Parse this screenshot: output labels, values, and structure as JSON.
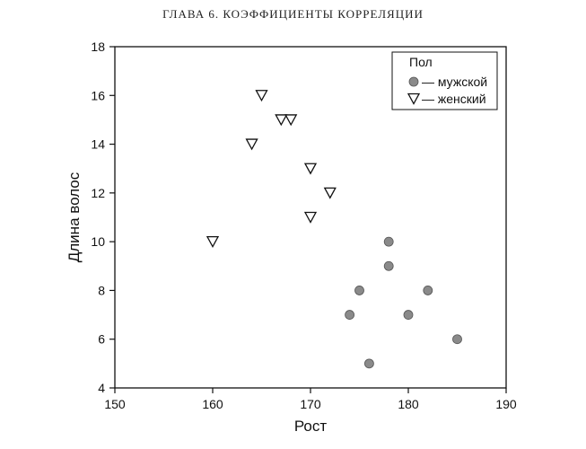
{
  "page": {
    "running_header": "ГЛАВА 6. КОЭФФИЦИЕНТЫ КОРРЕЛЯЦИИ"
  },
  "chart_data": {
    "type": "scatter",
    "title": "",
    "xlabel": "Рост",
    "ylabel": "Длина волос",
    "xlim": [
      150,
      190
    ],
    "ylim": [
      4,
      18
    ],
    "xticks": [
      150,
      160,
      170,
      180,
      190
    ],
    "yticks": [
      4,
      6,
      8,
      10,
      12,
      14,
      16,
      18
    ],
    "grid": false,
    "legend": {
      "title": "Пол",
      "placement": "top-right",
      "entries": [
        "— мужской",
        "— женский"
      ]
    },
    "series": [
      {
        "name": "мужской",
        "marker": "filled-circle",
        "color": "#8a8a8a",
        "points": [
          {
            "x": 178,
            "y": 10
          },
          {
            "x": 178,
            "y": 9
          },
          {
            "x": 175,
            "y": 8
          },
          {
            "x": 182,
            "y": 8
          },
          {
            "x": 174,
            "y": 7
          },
          {
            "x": 180,
            "y": 7
          },
          {
            "x": 185,
            "y": 6
          },
          {
            "x": 176,
            "y": 5
          }
        ]
      },
      {
        "name": "женский",
        "marker": "open-triangle-down",
        "color": "#111111",
        "points": [
          {
            "x": 165,
            "y": 16
          },
          {
            "x": 167,
            "y": 15
          },
          {
            "x": 168,
            "y": 15
          },
          {
            "x": 164,
            "y": 14
          },
          {
            "x": 170,
            "y": 13
          },
          {
            "x": 172,
            "y": 12
          },
          {
            "x": 170,
            "y": 11
          },
          {
            "x": 160,
            "y": 10
          }
        ]
      }
    ]
  }
}
